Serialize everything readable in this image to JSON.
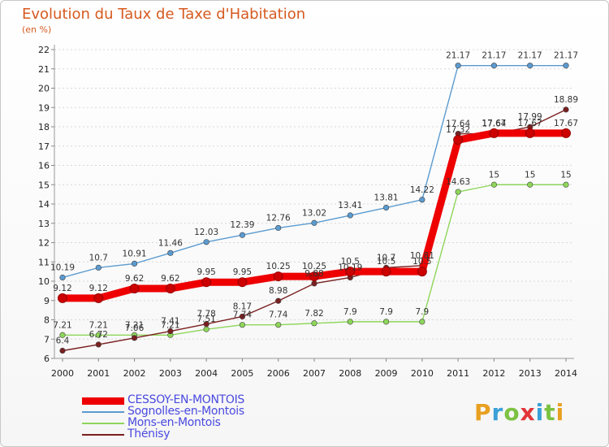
{
  "chart_data": {
    "type": "line",
    "title": "Evolution du Taux de Taxe d'Habitation",
    "subtitle": "(en %)",
    "x": [
      "2000",
      "2001",
      "2002",
      "2003",
      "2004",
      "2005",
      "2006",
      "2007",
      "2008",
      "2009",
      "2010",
      "2011",
      "2012",
      "2013",
      "2014"
    ],
    "ylim": [
      6,
      22
    ],
    "yticks": [
      6,
      7,
      8,
      9,
      10,
      11,
      12,
      13,
      14,
      15,
      16,
      17,
      18,
      19,
      20,
      21,
      22
    ],
    "grid": "horizontal dotted",
    "legend_position": "bottom-left",
    "series": [
      {
        "name": "CESSOY-EN-MONTOIS",
        "color": "#ee0000",
        "values": [
          9.12,
          9.12,
          9.62,
          9.62,
          9.95,
          9.95,
          10.25,
          10.25,
          10.5,
          10.5,
          10.5,
          17.32,
          17.67,
          17.67,
          17.67
        ],
        "labels": [
          "9.12",
          "9.12",
          "9.62",
          "9.62",
          "9.95",
          "9.95",
          "10.25",
          "10.25",
          "10.5",
          "10.5",
          "10.5",
          "17.32",
          "17.67",
          "17.67",
          "17.67"
        ]
      },
      {
        "name": "Sognolles-en-Montois",
        "color": "#5b9bd0",
        "values": [
          10.19,
          10.7,
          10.91,
          11.46,
          12.03,
          12.39,
          12.76,
          13.02,
          13.41,
          13.81,
          14.22,
          21.17,
          21.17,
          21.17,
          21.17
        ],
        "labels": [
          "10.19",
          "10.7",
          "10.91",
          "11.46",
          "12.03",
          "12.39",
          "12.76",
          "13.02",
          "13.41",
          "13.81",
          "14.22",
          "21.17",
          "21.17",
          "21.17",
          "21.17"
        ]
      },
      {
        "name": "Mons-en-Montois",
        "color": "#8ed65a",
        "values": [
          7.21,
          7.21,
          7.21,
          7.21,
          7.51,
          7.74,
          7.74,
          7.82,
          7.9,
          7.9,
          7.9,
          14.63,
          15,
          15,
          15
        ],
        "labels": [
          "7.21",
          "7.21",
          "7.21",
          "7.21",
          "7.51",
          "7.74",
          "7.74",
          "7.82",
          "7.9",
          "7.9",
          "7.9",
          "14.63",
          "15",
          "15",
          "15"
        ]
      },
      {
        "name": "Thénisy",
        "color": "#7a1f1f",
        "values": [
          6.4,
          6.72,
          7.06,
          7.41,
          7.78,
          8.17,
          8.98,
          9.88,
          10.19,
          10.7,
          10.81,
          17.64,
          17.64,
          17.99,
          18.89
        ],
        "labels": [
          "6.4",
          "6.72",
          "7.06",
          "7.41",
          "7.78",
          "8.17",
          "8.98",
          "9.88",
          "10.19",
          "10.7",
          "10.81",
          "17.64",
          "17.64",
          "17.99",
          "18.89"
        ]
      }
    ]
  },
  "logo": {
    "letters": [
      {
        "ch": "P",
        "color": "#e8a020"
      },
      {
        "ch": "r",
        "color": "#3aa0d8"
      },
      {
        "ch": "o",
        "color": "#7cc242"
      },
      {
        "ch": "x",
        "color": "#e2353a"
      },
      {
        "ch": "i",
        "color": "#3aa0d8"
      },
      {
        "ch": "t",
        "color": "#7cc242"
      },
      {
        "ch": "i",
        "color": "#e8a020"
      }
    ]
  }
}
